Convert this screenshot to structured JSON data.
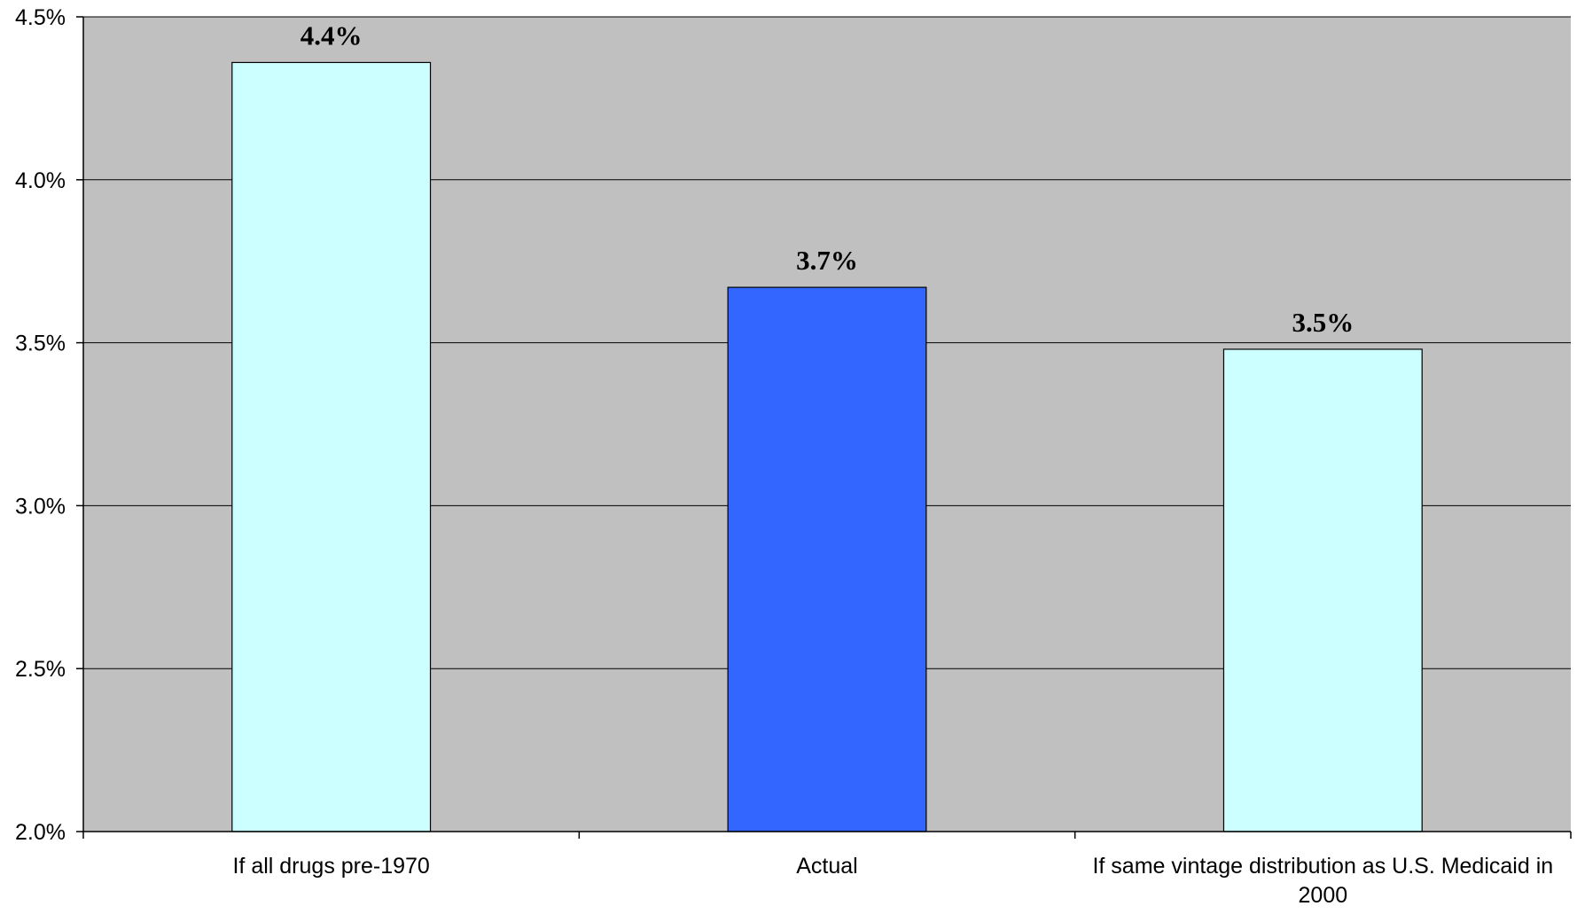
{
  "chart_data": {
    "type": "bar",
    "categories": [
      [
        "If all drugs pre-1970"
      ],
      [
        "Actual"
      ],
      [
        "If same vintage distribution as U.S. Medicaid in",
        "2000"
      ]
    ],
    "values": [
      4.36,
      3.67,
      3.48
    ],
    "data_labels": [
      "4.4%",
      "3.7%",
      "3.5%"
    ],
    "ylim": [
      2.0,
      4.5
    ],
    "yticks": [
      2.0,
      2.5,
      3.0,
      3.5,
      4.0,
      4.5
    ],
    "ytick_labels": [
      "2.0%",
      "2.5%",
      "3.0%",
      "3.5%",
      "4.0%",
      "4.5%"
    ],
    "title": "",
    "xlabel": "",
    "ylabel": "",
    "grid": true,
    "legend": "none",
    "colors": {
      "plot_background": "#c0c0c0",
      "bars": [
        "#ccffff",
        "#3366ff",
        "#ccffff"
      ],
      "bar_outline": "#000000",
      "gridline": "#000000"
    }
  }
}
